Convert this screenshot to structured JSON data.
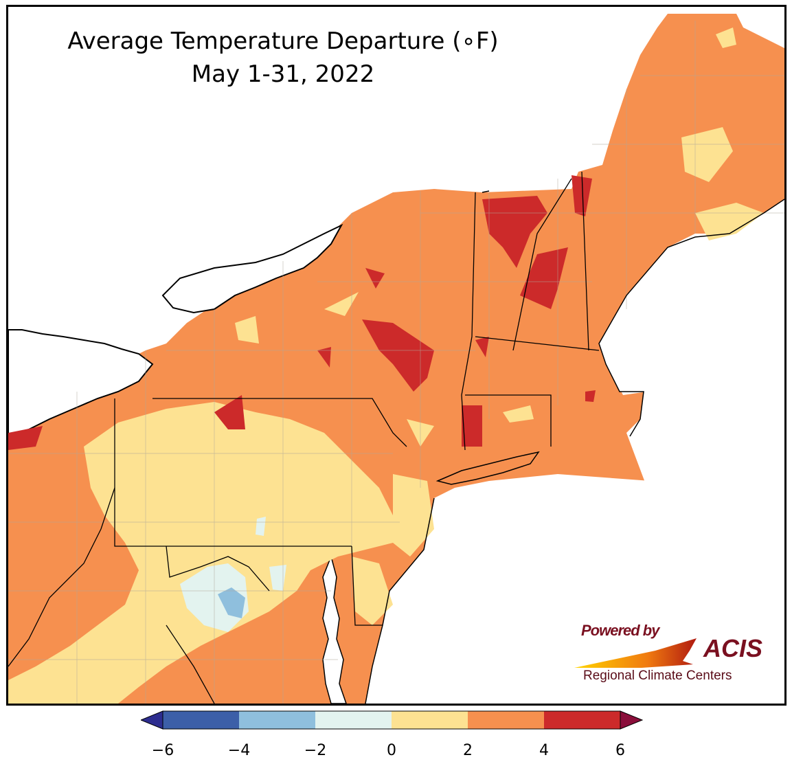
{
  "title": {
    "line1": "Average Temperature Departure (∘F)",
    "line2": "May 1-31, 2022"
  },
  "legend": {
    "bins": [
      {
        "min": -6,
        "max": -4,
        "color": "#3c5fa8"
      },
      {
        "min": -4,
        "max": -2,
        "color": "#8fbfdd"
      },
      {
        "min": -2,
        "max": 0,
        "color": "#e3f3ef"
      },
      {
        "min": 0,
        "max": 2,
        "color": "#fde292"
      },
      {
        "min": 2,
        "max": 4,
        "color": "#f6904f"
      },
      {
        "min": 4,
        "max": 6,
        "color": "#cc2a2a"
      }
    ],
    "under_color": "#2d2d8f",
    "over_color": "#8a0e3a",
    "tick_labels": [
      "−6",
      "−4",
      "−2",
      "0",
      "2",
      "4",
      "6"
    ]
  },
  "logo": {
    "powered_by": "Powered by",
    "acis": "ACIS",
    "rcc": "Regional Climate Centers"
  },
  "colors": {
    "water": "#ffffff",
    "border": "#000000",
    "county": "#b0a89a"
  }
}
